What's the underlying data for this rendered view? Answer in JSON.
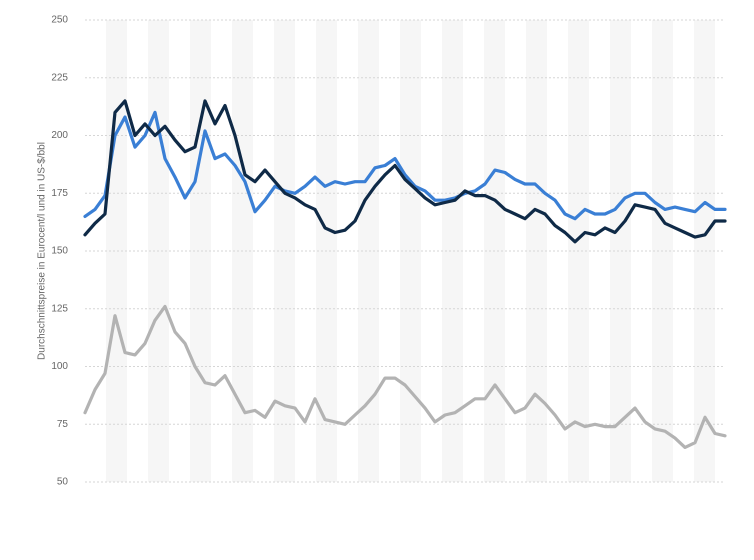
{
  "chart_data": {
    "type": "line",
    "y_label": "Durchschnittspreise in Eurocent/l und in US-$/bbl",
    "ylim": [
      50,
      250
    ],
    "yticks": [
      50,
      75,
      100,
      125,
      150,
      175,
      200,
      225,
      250
    ],
    "grid": true,
    "series": [
      {
        "color": "#b3b3b3",
        "values": [
          80,
          90,
          97,
          122,
          106,
          105,
          110,
          120,
          126,
          115,
          110,
          100,
          93,
          92,
          96,
          88,
          80,
          81,
          78,
          85,
          83,
          82,
          76,
          86,
          77,
          76,
          75,
          79,
          83,
          88,
          95,
          95,
          92,
          87,
          82,
          76,
          79,
          80,
          83,
          86,
          86,
          92,
          86,
          80,
          82,
          88,
          84,
          79,
          73,
          76,
          74,
          75,
          74,
          74,
          78,
          82,
          76,
          73,
          72,
          69,
          65,
          67,
          78,
          71,
          70
        ]
      },
      {
        "color": "#3a7fd5",
        "values": [
          165,
          168,
          174,
          200,
          208,
          195,
          200,
          210,
          190,
          182,
          173,
          180,
          202,
          190,
          192,
          187,
          180,
          167,
          172,
          178,
          176,
          175,
          178,
          182,
          178,
          180,
          179,
          180,
          180,
          186,
          187,
          190,
          183,
          178,
          176,
          172,
          172,
          173,
          175,
          176,
          179,
          185,
          184,
          181,
          179,
          179,
          175,
          172,
          166,
          164,
          168,
          166,
          166,
          168,
          173,
          175,
          175,
          171,
          168,
          169,
          168,
          167,
          171,
          168,
          168
        ]
      },
      {
        "color": "#0f2a47",
        "values": [
          157,
          162,
          166,
          210,
          215,
          200,
          205,
          200,
          204,
          198,
          193,
          195,
          215,
          205,
          213,
          200,
          183,
          180,
          185,
          180,
          175,
          173,
          170,
          168,
          160,
          158,
          159,
          163,
          172,
          178,
          183,
          187,
          181,
          177,
          173,
          170,
          171,
          172,
          176,
          174,
          174,
          172,
          168,
          166,
          164,
          168,
          166,
          161,
          158,
          154,
          158,
          157,
          160,
          158,
          163,
          170,
          169,
          168,
          162,
          160,
          158,
          156,
          157,
          163,
          163
        ]
      }
    ]
  }
}
